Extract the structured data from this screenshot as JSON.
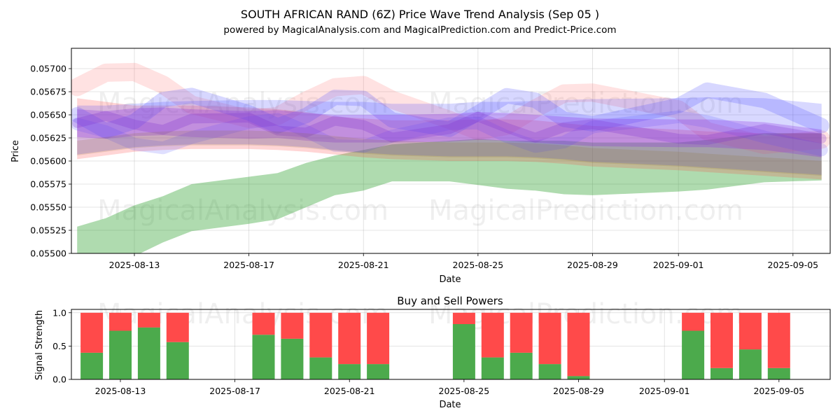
{
  "chart_data": [
    {
      "type": "area",
      "title": "SOUTH AFRICAN RAND (6Z) Price Wave Trend Analysis (Sep 05 )",
      "subtitle": "powered by MagicalAnalysis.com and MagicalPrediction.com and Predict-Price.com",
      "xlabel": "Date",
      "ylabel": "Price",
      "ylim": [
        0.055,
        0.05722
      ],
      "xlim": [
        "2025-08-10.8",
        "2025-09-06.3"
      ],
      "xticks": [
        "2025-08-13",
        "2025-08-17",
        "2025-08-21",
        "2025-08-25",
        "2025-08-29",
        "2025-09-01",
        "2025-09-05"
      ],
      "yticks": [
        "0.05500",
        "0.05525",
        "0.05550",
        "0.05575",
        "0.05600",
        "0.05625",
        "0.05650",
        "0.05675",
        "0.05700"
      ],
      "grid": true,
      "series": [
        {
          "name": "green band",
          "color": "#2ca02c",
          "x": [
            "2025-08-11",
            "2025-08-12",
            "2025-08-13",
            "2025-08-14",
            "2025-08-15",
            "2025-08-17",
            "2025-08-18",
            "2025-08-19",
            "2025-08-20",
            "2025-08-21",
            "2025-08-22",
            "2025-08-24",
            "2025-08-25",
            "2025-08-26",
            "2025-08-27",
            "2025-08-28",
            "2025-08-29",
            "2025-09-01",
            "2025-09-02",
            "2025-09-04",
            "2025-09-06"
          ],
          "upper": [
            0.05529,
            0.05538,
            0.05552,
            0.05562,
            0.05575,
            0.05583,
            0.05587,
            0.05598,
            0.05606,
            0.05612,
            0.05618,
            0.05622,
            0.05624,
            0.05622,
            0.05622,
            0.05622,
            0.0562,
            0.0562,
            0.05623,
            0.0563,
            0.0563
          ],
          "lower": [
            0.05495,
            0.0549,
            0.05497,
            0.05512,
            0.05524,
            0.05532,
            0.05537,
            0.0555,
            0.05563,
            0.05568,
            0.05578,
            0.05578,
            0.05574,
            0.0557,
            0.05568,
            0.05564,
            0.05563,
            0.05567,
            0.05569,
            0.05577,
            0.05579
          ]
        },
        {
          "name": "red band",
          "color": "#ff4040",
          "x": [
            "2025-08-11",
            "2025-08-12",
            "2025-08-13",
            "2025-08-14",
            "2025-08-15",
            "2025-08-17",
            "2025-08-18",
            "2025-08-19",
            "2025-08-20",
            "2025-08-21",
            "2025-08-22",
            "2025-08-24",
            "2025-08-25",
            "2025-08-26",
            "2025-08-27",
            "2025-08-28",
            "2025-08-29",
            "2025-09-01",
            "2025-09-02",
            "2025-09-04",
            "2025-09-06"
          ],
          "upper": [
            0.05668,
            0.05664,
            0.0566,
            0.0566,
            0.0566,
            0.05658,
            0.05656,
            0.05653,
            0.05648,
            0.05646,
            0.05644,
            0.05644,
            0.05645,
            0.05645,
            0.05644,
            0.05641,
            0.05638,
            0.05634,
            0.05632,
            0.0563,
            0.0563
          ],
          "lower": [
            0.05602,
            0.05606,
            0.0561,
            0.05612,
            0.05613,
            0.05613,
            0.05612,
            0.0561,
            0.05607,
            0.05604,
            0.05602,
            0.056,
            0.056,
            0.056,
            0.05599,
            0.05597,
            0.05594,
            0.0559,
            0.05588,
            0.05584,
            0.0558
          ]
        },
        {
          "name": "blue band",
          "color": "#3c3cff",
          "x": [
            "2025-08-11",
            "2025-08-12",
            "2025-08-13",
            "2025-08-14",
            "2025-08-15",
            "2025-08-17",
            "2025-08-18",
            "2025-08-19",
            "2025-08-20",
            "2025-08-21",
            "2025-08-22",
            "2025-08-24",
            "2025-08-25",
            "2025-08-26",
            "2025-08-27",
            "2025-08-28",
            "2025-08-29",
            "2025-09-01",
            "2025-09-02",
            "2025-09-04",
            "2025-09-06"
          ],
          "upper": [
            0.0566,
            0.0566,
            0.05662,
            0.05664,
            0.05665,
            0.05666,
            0.05666,
            0.05665,
            0.05664,
            0.05664,
            0.05662,
            0.05662,
            0.05664,
            0.05664,
            0.05665,
            0.05666,
            0.05667,
            0.05668,
            0.05669,
            0.05668,
            0.05662
          ]
        },
        {
          "name": "purple band",
          "color": "#8a2be2",
          "x": [
            "2025-08-11",
            "2025-08-12",
            "2025-08-13",
            "2025-08-14",
            "2025-08-15",
            "2025-08-17",
            "2025-08-18",
            "2025-08-19",
            "2025-08-20",
            "2025-08-21",
            "2025-08-22",
            "2025-08-24",
            "2025-08-25",
            "2025-08-26",
            "2025-08-27",
            "2025-08-28",
            "2025-08-29",
            "2025-09-01",
            "2025-09-02",
            "2025-09-04",
            "2025-09-06"
          ],
          "upper": [
            0.05656,
            0.05654,
            0.05657,
            0.05658,
            0.05656,
            0.05654,
            0.05655,
            0.05652,
            0.0565,
            0.0565,
            0.0565,
            0.05651,
            0.05653,
            0.05652,
            0.0565,
            0.05648,
            0.05646,
            0.05645,
            0.05645,
            0.05642,
            0.05634
          ]
        }
      ]
    },
    {
      "type": "bar",
      "title": "Buy and Sell Powers",
      "xlabel": "Date",
      "ylabel": "Signal Strength",
      "ylim": [
        0,
        1.05
      ],
      "xlim": [
        "2025-08-10.8",
        "2025-09-06.3"
      ],
      "xticks": [
        "2025-08-13",
        "2025-08-17",
        "2025-08-21",
        "2025-08-25",
        "2025-08-29",
        "2025-09-01",
        "2025-09-05"
      ],
      "yticks": [
        "0.0",
        "0.5",
        "1.0"
      ],
      "grid": true,
      "categories": [
        "2025-08-12",
        "2025-08-13",
        "2025-08-14",
        "2025-08-15",
        "2025-08-18",
        "2025-08-19",
        "2025-08-20",
        "2025-08-21",
        "2025-08-22",
        "2025-08-25",
        "2025-08-26",
        "2025-08-27",
        "2025-08-28",
        "2025-08-29",
        "2025-09-02",
        "2025-09-03",
        "2025-09-04",
        "2025-09-05"
      ],
      "series": [
        {
          "name": "Buy",
          "color": "#4caa4c",
          "values": [
            0.4,
            0.73,
            0.78,
            0.56,
            0.67,
            0.61,
            0.33,
            0.23,
            0.23,
            0.83,
            0.33,
            0.4,
            0.23,
            0.05,
            0.73,
            0.17,
            0.45,
            0.17
          ]
        },
        {
          "name": "Sell",
          "color": "#ff4a4a",
          "values": [
            0.6,
            0.27,
            0.22,
            0.44,
            0.33,
            0.39,
            0.67,
            0.77,
            0.77,
            0.17,
            0.67,
            0.6,
            0.77,
            0.95,
            0.27,
            0.83,
            0.55,
            0.83
          ]
        }
      ]
    }
  ],
  "watermarks": [
    "MagicalAnalysis.com",
    "MagicalPrediction.com"
  ]
}
